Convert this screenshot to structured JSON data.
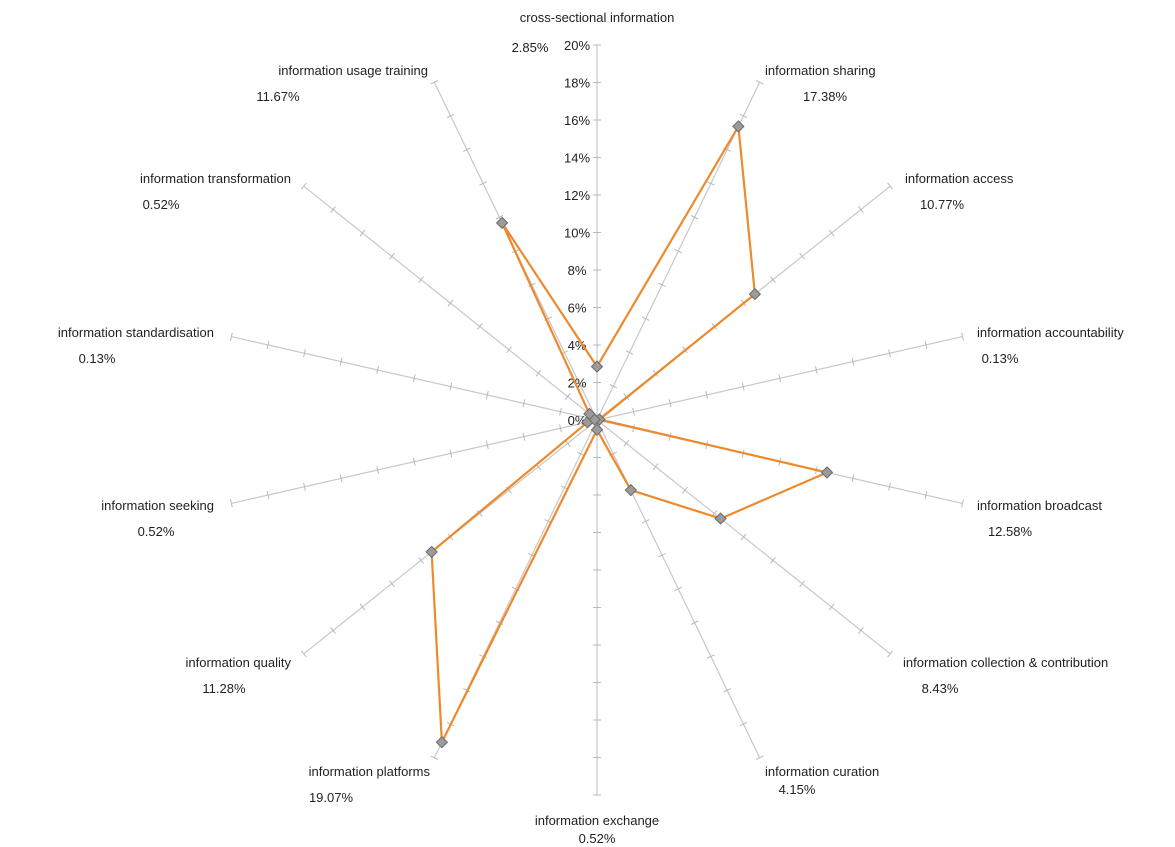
{
  "chart_data": {
    "type": "radar",
    "title": "",
    "axis": {
      "min": 0,
      "max": 20,
      "step": 2,
      "unit": "%"
    },
    "tick_labels": [
      "0%",
      "2%",
      "4%",
      "6%",
      "8%",
      "10%",
      "12%",
      "14%",
      "16%",
      "18%",
      "20%"
    ],
    "grid": false,
    "categories": [
      {
        "name": "cross-sectional information",
        "value": 2.85,
        "value_label": "2.85%"
      },
      {
        "name": "information sharing",
        "value": 17.38,
        "value_label": "17.38%"
      },
      {
        "name": "information access",
        "value": 10.77,
        "value_label": "10.77%"
      },
      {
        "name": "information accountability",
        "value": 0.13,
        "value_label": "0.13%"
      },
      {
        "name": "information broadcast",
        "value": 12.58,
        "value_label": "12.58%"
      },
      {
        "name": "information collection & contribution",
        "value": 8.43,
        "value_label": "8.43%"
      },
      {
        "name": "information curation",
        "value": 4.15,
        "value_label": "4.15%"
      },
      {
        "name": "information exchange",
        "value": 0.52,
        "value_label": "0.52%"
      },
      {
        "name": "information platforms",
        "value": 19.07,
        "value_label": "19.07%"
      },
      {
        "name": "information quality",
        "value": 11.28,
        "value_label": "11.28%"
      },
      {
        "name": "information seeking",
        "value": 0.52,
        "value_label": "0.52%"
      },
      {
        "name": "information standardisation",
        "value": 0.13,
        "value_label": "0.13%"
      },
      {
        "name": "information transformation",
        "value": 0.52,
        "value_label": "0.52%"
      },
      {
        "name": "information usage training",
        "value": 11.67,
        "value_label": "11.67%"
      }
    ],
    "colors": {
      "line": "#ee8a2e",
      "marker_fill": "#9b9b9b",
      "marker_stroke": "#6a6a6a",
      "axis": "#c8c8c8"
    }
  }
}
